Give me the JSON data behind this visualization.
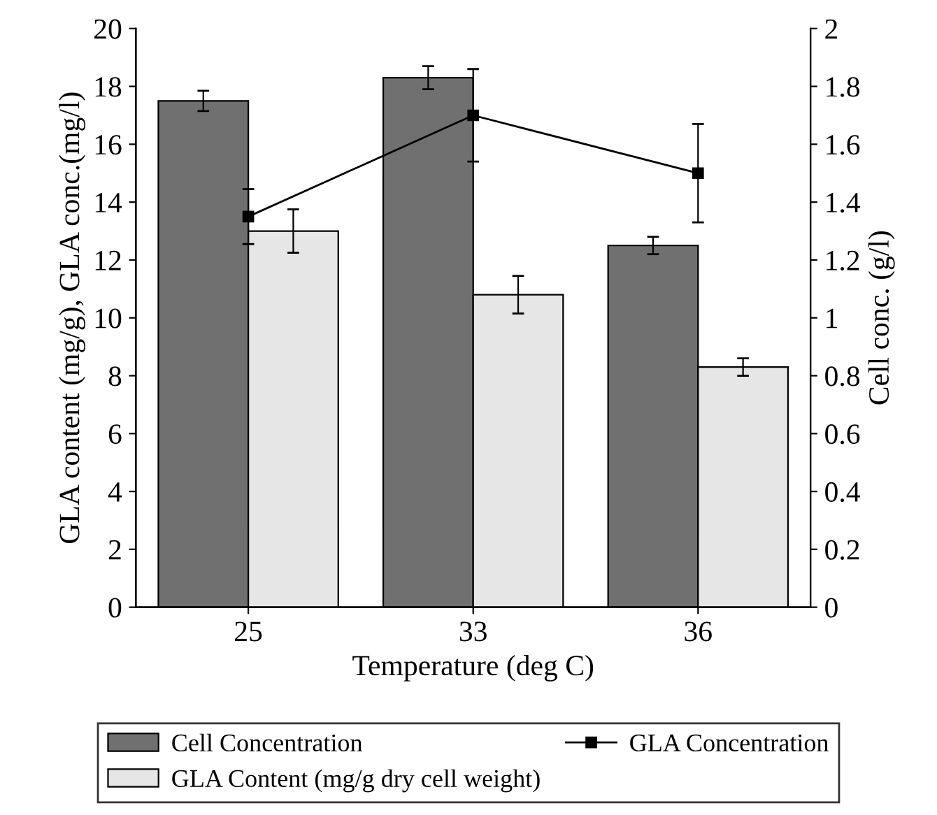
{
  "chart_data": {
    "type": "bar",
    "categories": [
      "25",
      "33",
      "36"
    ],
    "xlabel": "Temperature (deg C)",
    "ylabel": "GLA content (mg/g), GLA conc.(mg/l)",
    "y2label": "Cell conc. (g/l)",
    "ylim": [
      0,
      20
    ],
    "yticks": [
      0,
      2,
      4,
      6,
      8,
      10,
      12,
      14,
      16,
      18,
      20
    ],
    "y2lim": [
      0,
      2
    ],
    "y2ticks": [
      {
        "value": 0,
        "label": "0"
      },
      {
        "value": 0.2,
        "label": "0.2"
      },
      {
        "value": 0.4,
        "label": "0.4"
      },
      {
        "value": 0.6,
        "label": "0.6"
      },
      {
        "value": 0.8,
        "label": "0.8"
      },
      {
        "value": 1,
        "label": "1"
      },
      {
        "value": 1.2,
        "label": "1.2"
      },
      {
        "value": 1.4,
        "label": "1.4"
      },
      {
        "value": 1.6,
        "label": "1.6"
      },
      {
        "value": 1.8,
        "label": "1.8"
      },
      {
        "value": 2,
        "label": "2"
      }
    ],
    "grid": false,
    "legend": "bottom",
    "series": [
      {
        "name": "Cell Concentration",
        "color": "#707070",
        "axis": "y2",
        "values": [
          1.75,
          1.83,
          1.25
        ],
        "errors": [
          0.035,
          0.04,
          0.03
        ]
      },
      {
        "name": "GLA Content (mg/g dry cell weight)",
        "color": "#e6e6e6",
        "values": [
          13.0,
          10.8,
          8.3
        ],
        "errors": [
          0.75,
          0.65,
          0.3
        ]
      },
      {
        "type": "line",
        "name": "GLA Concentration",
        "color": "#000000",
        "marker": "square",
        "line_style": "solid",
        "values": [
          13.5,
          17.0,
          15.0
        ],
        "errors": [
          0.95,
          1.6,
          1.7
        ]
      }
    ]
  }
}
